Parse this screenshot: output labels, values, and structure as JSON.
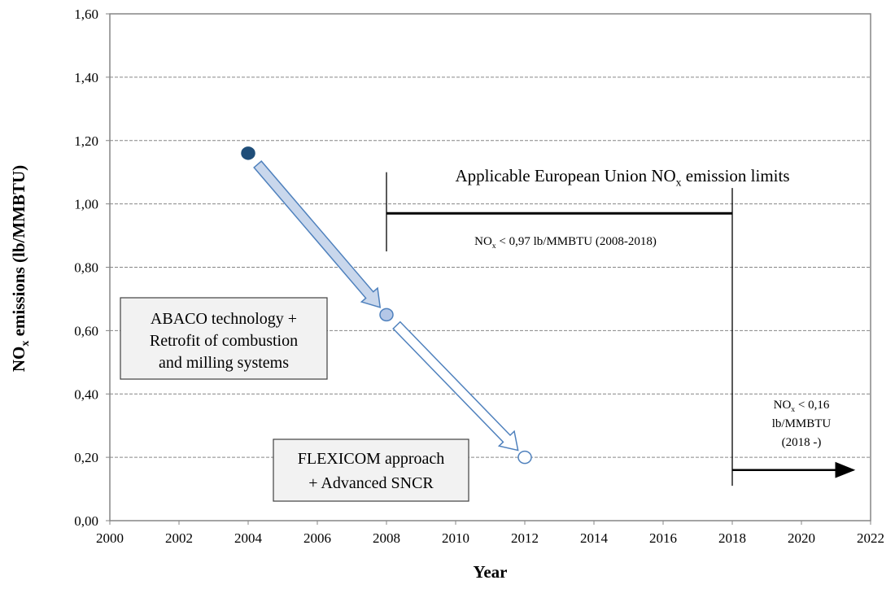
{
  "chart_data": {
    "type": "scatter",
    "xlabel": "Year",
    "ylabel": [
      "NO",
      "x",
      " emissions (lb/MMBTU)"
    ],
    "xlim": [
      2000,
      2022
    ],
    "ylim": [
      0,
      1.6
    ],
    "xticks": [
      2000,
      2002,
      2004,
      2006,
      2008,
      2010,
      2012,
      2014,
      2016,
      2018,
      2020,
      2022
    ],
    "yticks": [
      {
        "value": 0,
        "label": "0,00"
      },
      {
        "value": 0.2,
        "label": "0,20"
      },
      {
        "value": 0.4,
        "label": "0,40"
      },
      {
        "value": 0.6,
        "label": "0,60"
      },
      {
        "value": 0.8,
        "label": "0,80"
      },
      {
        "value": 1.0,
        "label": "1,00"
      },
      {
        "value": 1.2,
        "label": "1,20"
      },
      {
        "value": 1.4,
        "label": "1,40"
      },
      {
        "value": 1.6,
        "label": "1,60"
      }
    ],
    "grid": true,
    "series": [
      {
        "x": [
          2004,
          2008,
          2012
        ],
        "values": [
          1.16,
          0.65,
          0.2
        ],
        "colors": [
          "#1f4e79",
          "#b4c7e7",
          "#ffffff"
        ],
        "edge_color": "#4f81bd"
      }
    ],
    "limits": [
      {
        "value": 0.97,
        "x": [
          2008,
          2018
        ]
      },
      {
        "value": 0.16,
        "x": [
          2018,
          2021.5
        ]
      }
    ],
    "vlines": [
      {
        "x": 2008,
        "y": [
          0.85,
          1.1
        ]
      },
      {
        "x": 2018,
        "y": [
          0.11,
          1.05
        ]
      }
    ],
    "annotations": {
      "eu_limits": [
        [
          "Applicable European Union NO",
          "x",
          " emission limits"
        ]
      ],
      "limit_2008": [
        [
          "NO",
          "x",
          " < 0,97 lb/MMBTU (2008-2018)"
        ]
      ],
      "limit_2018": [
        [
          "NO",
          "x",
          " < 0,16"
        ],
        [
          "lb/MMBTU"
        ],
        [
          "(2018 -)"
        ]
      ],
      "abaco": [
        [
          "ABACO technology +"
        ],
        [
          "Retrofit of combustion"
        ],
        [
          "and milling systems"
        ]
      ],
      "flexicom": [
        [
          "FLEXICOM approach"
        ],
        [
          "+ Advanced SNCR"
        ]
      ]
    }
  }
}
